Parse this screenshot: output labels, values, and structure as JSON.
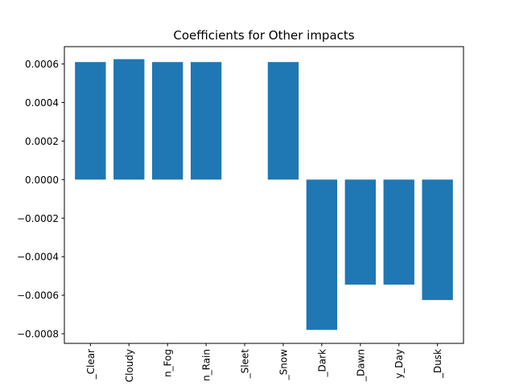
{
  "chart_data": {
    "type": "bar",
    "title": "Coefficients for Other impacts",
    "xlabel": "",
    "ylabel": "",
    "categories": [
      "_Clear",
      "Cloudy",
      "n_Fog",
      "n_Rain",
      "_Sleet",
      "_Snow",
      "_Dark",
      "_Dawn",
      "y_Day",
      "_Dusk"
    ],
    "values": [
      0.00061,
      0.000625,
      0.00061,
      0.00061,
      0.0,
      0.00061,
      -0.00078,
      -0.000545,
      -0.000545,
      -0.000625
    ],
    "ylim": [
      -0.00085,
      0.00069
    ],
    "yticks": [
      0.0006,
      0.0004,
      0.0002,
      0.0,
      -0.0002,
      -0.0004,
      -0.0006,
      -0.0008
    ],
    "ytick_labels": [
      "0.0006",
      "0.0004",
      "0.0002",
      "0.0000",
      "−0.0002",
      "−0.0004",
      "−0.0006",
      "−0.0008"
    ],
    "bar_color": "#1f77b4",
    "grid": false,
    "legend": "none"
  }
}
